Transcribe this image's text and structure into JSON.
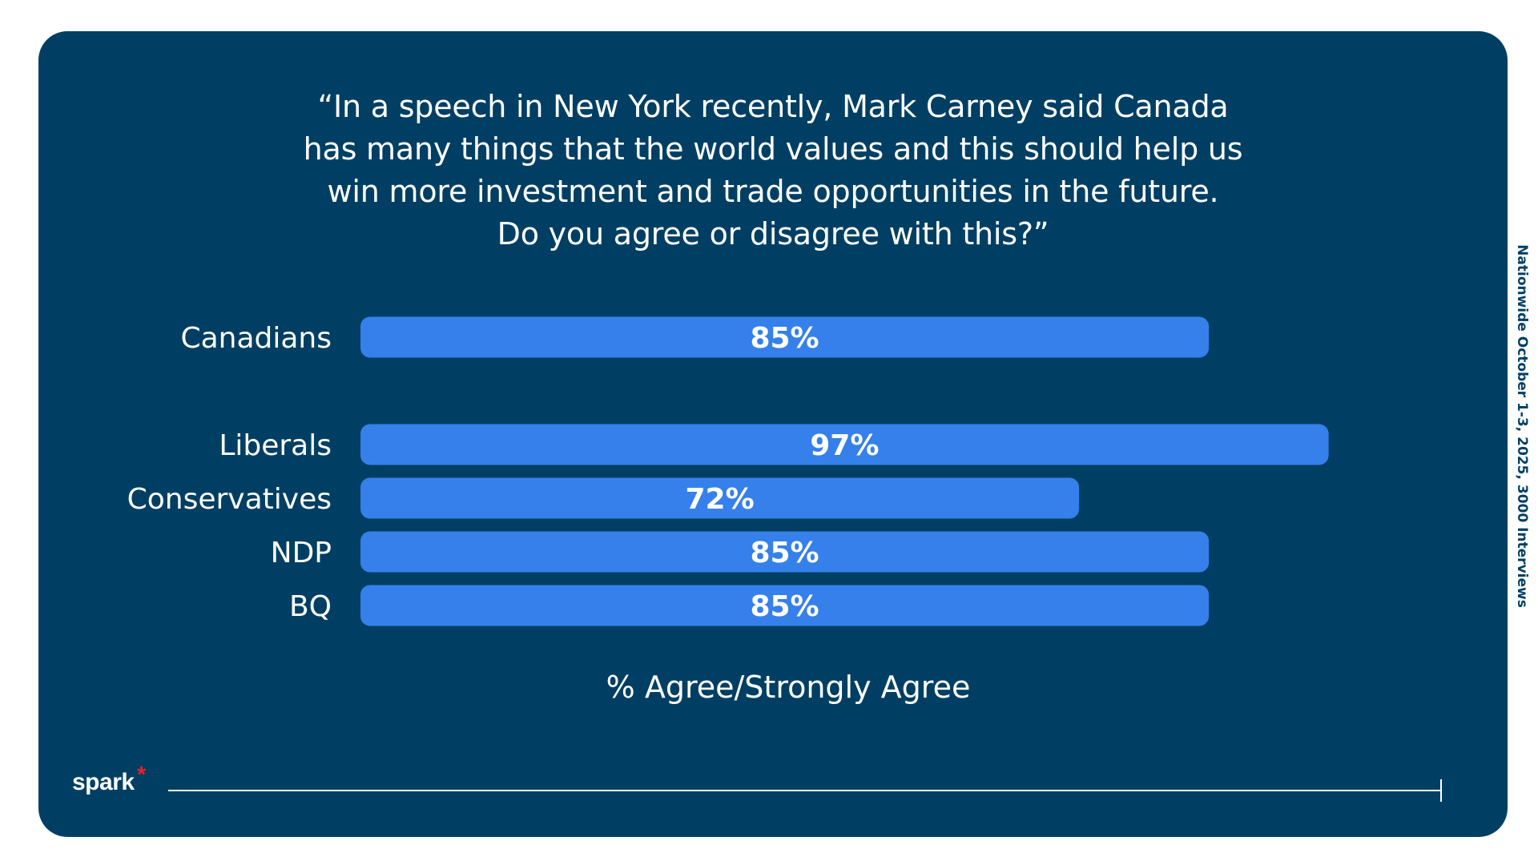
{
  "question": "“In a speech in New York recently, Mark Carney said Canada has many things that the world values and this should help us win more investment and trade opportunities in the future. Do you agree or disagree with this?”",
  "footnote": "Nationwide October 1-3, 2025, 3000 Interviews",
  "logo": {
    "text": "spark",
    "mark": "*"
  },
  "colors": {
    "background": "#003f63",
    "bar": "#3580ea",
    "text": "#ffffff",
    "logo_accent": "#e8222a"
  },
  "chart_data": {
    "type": "bar",
    "orientation": "horizontal",
    "categories": [
      "Canadians",
      "Liberals",
      "Conservatives",
      "NDP",
      "BQ"
    ],
    "values": [
      85,
      97,
      72,
      85,
      85
    ],
    "value_labels": [
      "85%",
      "97%",
      "72%",
      "85%",
      "85%"
    ],
    "xlabel": "% Agree/Strongly Agree",
    "xlim": [
      0,
      100
    ],
    "grid": false,
    "legend": "none",
    "group_break_after": "Canadians"
  }
}
